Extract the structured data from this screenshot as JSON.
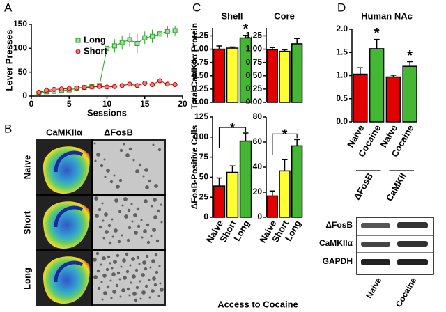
{
  "panels": [
    "A",
    "B",
    "C",
    "D"
  ],
  "panel_b": {
    "columns": [
      "CaMKIIα",
      "ΔFosB"
    ],
    "rows": [
      "Naive",
      "Short",
      "Long"
    ]
  },
  "panel_c": {
    "columns": [
      "Shell",
      "Core"
    ],
    "ylabel_top": "Total CaMKIIα Protein",
    "ylabel_bottom": "ΔFosB-Positive Cells",
    "xlabel": "Access to Cocaine"
  },
  "panel_d": {
    "title": "Human NAc",
    "blot_rows": [
      "ΔFosB",
      "CaMKIIα",
      "GAPDH"
    ],
    "blot_columns": [
      "Naive",
      "Cocaine"
    ]
  },
  "chart_data": [
    {
      "type": "line",
      "xlabel": "Sessions",
      "ylabel": "Lever Presses",
      "x": [
        1,
        2,
        3,
        4,
        5,
        6,
        7,
        8,
        9,
        10,
        11,
        12,
        13,
        14,
        15,
        16,
        17,
        18,
        19
      ],
      "series": [
        {
          "name": "Long",
          "color": "#2a9d2a",
          "fill": "#9be09b",
          "marker": "square",
          "values": [
            7,
            9,
            10,
            12,
            13,
            16,
            18,
            20,
            22,
            100,
            105,
            112,
            118,
            110,
            122,
            125,
            130,
            135,
            137
          ],
          "errors": [
            2,
            2,
            3,
            3,
            3,
            4,
            4,
            4,
            5,
            15,
            14,
            15,
            14,
            20,
            13,
            14,
            12,
            12,
            10
          ]
        },
        {
          "name": "Short",
          "color": "#c00000",
          "fill": "#f08080",
          "marker": "circle",
          "values": [
            8,
            12,
            14,
            15,
            16,
            17,
            18,
            19,
            20,
            19,
            20,
            22,
            25,
            22,
            27,
            24,
            32,
            25,
            24
          ],
          "errors": [
            2,
            6,
            3,
            4,
            3,
            3,
            3,
            3,
            3,
            3,
            3,
            4,
            4,
            4,
            5,
            4,
            9,
            4,
            3
          ]
        }
      ],
      "xlim": [
        0,
        20
      ],
      "xticks": [
        0,
        5,
        10,
        15,
        20
      ],
      "ylim": [
        0,
        150
      ],
      "yticks": [
        0,
        50,
        100,
        150
      ]
    },
    {
      "type": "bar",
      "values": [
        1.0,
        1.02,
        1.21
      ],
      "errors": [
        0.06,
        0.02,
        0.05
      ],
      "colors": [
        "#e00000",
        "#ffff33",
        "#44b833"
      ],
      "significance": [
        null,
        null,
        "*"
      ],
      "ylim": [
        0,
        1.4
      ],
      "yticks": [
        {
          "value": 0,
          "label": "0.00"
        },
        {
          "value": 0.25,
          "label": "0.25"
        },
        {
          "value": 0.5,
          "label": "0.50"
        },
        {
          "value": 0.75,
          "label": "0.75"
        },
        {
          "value": 1.0,
          "label": "1.00"
        },
        {
          "value": 1.25,
          "label": "1.25"
        }
      ]
    },
    {
      "type": "bar",
      "values": [
        0.99,
        0.96,
        1.1
      ],
      "errors": [
        0.04,
        0.03,
        0.1
      ],
      "colors": [
        "#e00000",
        "#ffff33",
        "#44b833"
      ],
      "ylim": [
        0,
        1.4
      ],
      "yticks": [
        {
          "value": 0,
          "label": "0.00"
        },
        {
          "value": 0.25,
          "label": "0.25"
        },
        {
          "value": 0.5,
          "label": "0.50"
        },
        {
          "value": 0.75,
          "label": "0.75"
        },
        {
          "value": 1.0,
          "label": "1.00"
        },
        {
          "value": 1.25,
          "label": "1.25"
        }
      ]
    },
    {
      "type": "bar",
      "categories": [
        "Naive",
        "Short",
        "Long"
      ],
      "values": [
        39,
        56,
        95
      ],
      "errors": [
        10,
        8,
        10
      ],
      "colors": [
        "#e00000",
        "#ffff33",
        "#44b833"
      ],
      "comparisons": [
        {
          "pair": [
            "Naive",
            "Long"
          ],
          "label": "*"
        }
      ],
      "ylim": [
        0,
        125
      ],
      "yticks": [
        0,
        25,
        50,
        75,
        100,
        125
      ]
    },
    {
      "type": "bar",
      "categories": [
        "Naive",
        "Short",
        "Long"
      ],
      "values": [
        17,
        37,
        57
      ],
      "errors": [
        4,
        9,
        5
      ],
      "colors": [
        "#e00000",
        "#ffff33",
        "#44b833"
      ],
      "comparisons": [
        {
          "pair": [
            "Naive",
            "Long"
          ],
          "label": "*"
        }
      ],
      "ylim": [
        0,
        80
      ],
      "yticks": [
        0,
        20,
        40,
        60,
        80
      ]
    },
    {
      "type": "bar",
      "categories": [
        "Naive",
        "Cocaine",
        "Naive",
        "Cocaine"
      ],
      "values": [
        1.03,
        1.58,
        0.97,
        1.2
      ],
      "errors": [
        0.14,
        0.2,
        0.04,
        0.1
      ],
      "colors": [
        "#e00000",
        "#44b833",
        "#e00000",
        "#44b833"
      ],
      "significance": [
        null,
        "*",
        null,
        "*"
      ],
      "groups": [
        "ΔFosB",
        "CaMKII"
      ],
      "ylim": [
        0,
        2
      ],
      "yticks": [
        {
          "value": 0,
          "label": "0.0"
        },
        {
          "value": 0.5,
          "label": "0.5"
        },
        {
          "value": 1.0,
          "label": "1.0"
        },
        {
          "value": 1.5,
          "label": "1.5"
        },
        {
          "value": 2.0,
          "label": "2.0"
        }
      ]
    }
  ]
}
